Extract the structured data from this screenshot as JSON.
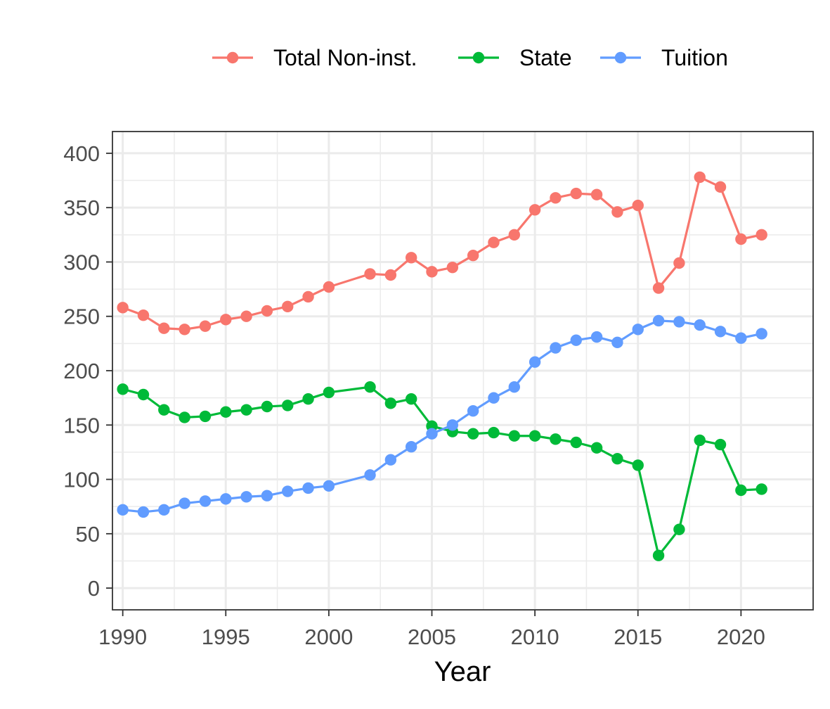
{
  "chart_data": {
    "type": "line",
    "title": "",
    "xlabel": "Year",
    "ylabel": "",
    "xlim": [
      1989.5,
      2023.5
    ],
    "ylim": [
      -20,
      420
    ],
    "x_ticks": [
      1990,
      1995,
      2000,
      2005,
      2010,
      2015,
      2020
    ],
    "y_ticks": [
      0,
      50,
      100,
      150,
      200,
      250,
      300,
      350,
      400
    ],
    "grid": true,
    "legend_position": "top",
    "series": [
      {
        "name": "Total Non-inst.",
        "color": "#F8766D",
        "points": [
          [
            1990,
            258
          ],
          [
            1991,
            251
          ],
          [
            1992,
            239
          ],
          [
            1993,
            238
          ],
          [
            1994,
            241
          ],
          [
            1995,
            247
          ],
          [
            1996,
            250
          ],
          [
            1997,
            255
          ],
          [
            1998,
            259
          ],
          [
            1999,
            268
          ],
          [
            2000,
            277
          ],
          [
            2002,
            289
          ],
          [
            2003,
            288
          ],
          [
            2004,
            304
          ],
          [
            2005,
            291
          ],
          [
            2006,
            295
          ],
          [
            2007,
            306
          ],
          [
            2008,
            318
          ],
          [
            2009,
            325
          ],
          [
            2010,
            348
          ],
          [
            2011,
            359
          ],
          [
            2012,
            363
          ],
          [
            2013,
            362
          ],
          [
            2014,
            346
          ],
          [
            2015,
            352
          ],
          [
            2016,
            276
          ],
          [
            2017,
            299
          ],
          [
            2018,
            378
          ],
          [
            2019,
            369
          ],
          [
            2020,
            321
          ],
          [
            2021,
            325
          ]
        ]
      },
      {
        "name": "State",
        "color": "#00BA38",
        "points": [
          [
            1990,
            183
          ],
          [
            1991,
            178
          ],
          [
            1992,
            164
          ],
          [
            1993,
            157
          ],
          [
            1994,
            158
          ],
          [
            1995,
            162
          ],
          [
            1996,
            164
          ],
          [
            1997,
            167
          ],
          [
            1998,
            168
          ],
          [
            1999,
            174
          ],
          [
            2000,
            180
          ],
          [
            2002,
            185
          ],
          [
            2003,
            170
          ],
          [
            2004,
            174
          ],
          [
            2005,
            149
          ],
          [
            2006,
            144
          ],
          [
            2007,
            142
          ],
          [
            2008,
            143
          ],
          [
            2009,
            140
          ],
          [
            2010,
            140
          ],
          [
            2011,
            137
          ],
          [
            2012,
            134
          ],
          [
            2013,
            129
          ],
          [
            2014,
            119
          ],
          [
            2015,
            113
          ],
          [
            2016,
            30
          ],
          [
            2017,
            54
          ],
          [
            2018,
            136
          ],
          [
            2019,
            132
          ],
          [
            2020,
            90
          ],
          [
            2021,
            91
          ]
        ]
      },
      {
        "name": "Tuition",
        "color": "#619CFF",
        "points": [
          [
            1990,
            72
          ],
          [
            1991,
            70
          ],
          [
            1992,
            72
          ],
          [
            1993,
            78
          ],
          [
            1994,
            80
          ],
          [
            1995,
            82
          ],
          [
            1996,
            84
          ],
          [
            1997,
            85
          ],
          [
            1998,
            89
          ],
          [
            1999,
            92
          ],
          [
            2000,
            94
          ],
          [
            2002,
            104
          ],
          [
            2003,
            118
          ],
          [
            2004,
            130
          ],
          [
            2005,
            142
          ],
          [
            2006,
            150
          ],
          [
            2007,
            163
          ],
          [
            2008,
            175
          ],
          [
            2009,
            185
          ],
          [
            2010,
            208
          ],
          [
            2011,
            221
          ],
          [
            2012,
            228
          ],
          [
            2013,
            231
          ],
          [
            2014,
            226
          ],
          [
            2015,
            238
          ],
          [
            2016,
            246
          ],
          [
            2017,
            245
          ],
          [
            2018,
            242
          ],
          [
            2019,
            236
          ],
          [
            2020,
            230
          ],
          [
            2021,
            234
          ]
        ]
      }
    ]
  }
}
